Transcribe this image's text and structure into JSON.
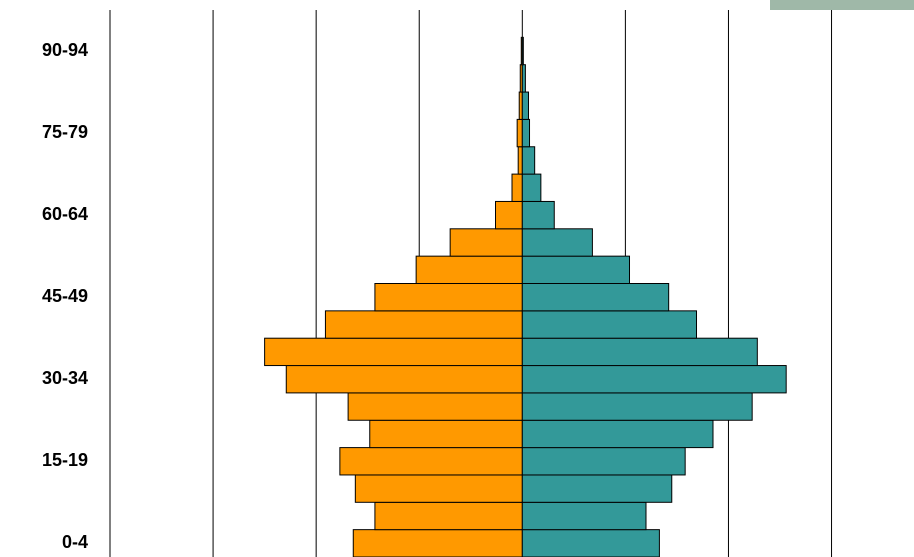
{
  "chart_data": {
    "type": "pyramid",
    "categories": [
      "0-4",
      null,
      null,
      "15-19",
      null,
      null,
      "30-34",
      null,
      null,
      "45-49",
      null,
      null,
      "60-64",
      null,
      null,
      "75-79",
      null,
      null,
      "90-94"
    ],
    "series": [
      {
        "color": "#ff9900",
        "values": [
          -1.64,
          -1.43,
          -1.62,
          -1.77,
          -1.48,
          -1.69,
          -2.29,
          -2.5,
          -1.91,
          -1.43,
          -1.03,
          -0.7,
          -0.26,
          -0.1,
          -0.04,
          -0.05,
          -0.03,
          -0.02,
          -0.01
        ]
      },
      {
        "color": "#339999",
        "values": [
          1.33,
          1.2,
          1.45,
          1.58,
          1.85,
          2.23,
          2.56,
          2.28,
          1.69,
          1.42,
          1.04,
          0.68,
          0.31,
          0.18,
          0.12,
          0.07,
          0.06,
          0.03,
          0.01
        ]
      }
    ],
    "xlim": [
      -4,
      3.8
    ],
    "xticks": [
      -4,
      -3,
      -2,
      -1,
      0,
      1,
      2,
      3
    ],
    "grid": true
  }
}
